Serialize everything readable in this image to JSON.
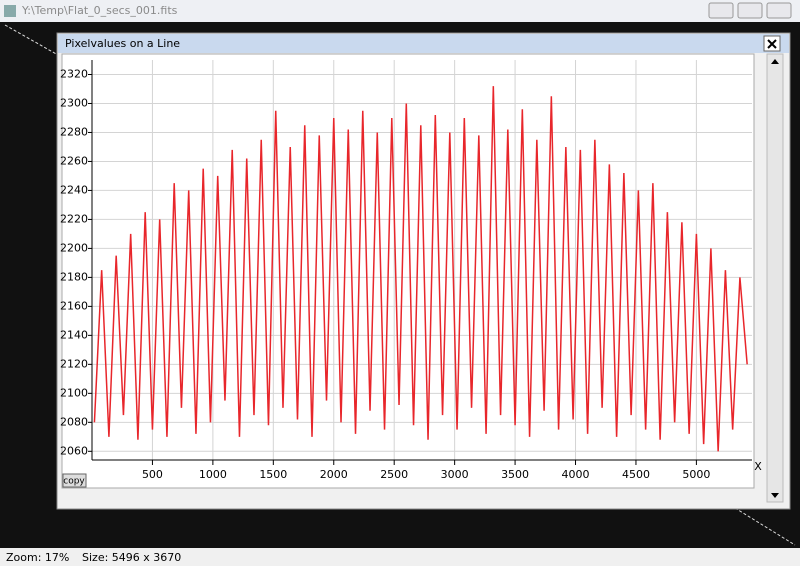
{
  "window": {
    "title": "Y:\\Temp\\Flat_0_secs_001.fits"
  },
  "dialog": {
    "title": "Pixelvalues on a Line",
    "copy_button": "copy"
  },
  "status": {
    "zoom": "Zoom: 17%",
    "size": "Size: 5496 x 3670"
  },
  "chart_data": {
    "type": "line",
    "x_label": "X",
    "grid": true,
    "color": "#e8262b",
    "xlim": [
      0,
      5460
    ],
    "ylim": [
      2054,
      2330
    ],
    "xticks": [
      500,
      1000,
      1500,
      2000,
      2500,
      3000,
      3500,
      4000,
      4500,
      5000
    ],
    "yticks": [
      2060,
      2080,
      2100,
      2120,
      2140,
      2160,
      2180,
      2200,
      2220,
      2240,
      2260,
      2280,
      2300,
      2320
    ],
    "x": [
      20,
      80,
      140,
      200,
      260,
      320,
      380,
      440,
      500,
      560,
      620,
      680,
      740,
      800,
      860,
      920,
      980,
      1040,
      1100,
      1160,
      1220,
      1280,
      1340,
      1400,
      1460,
      1520,
      1580,
      1640,
      1700,
      1760,
      1820,
      1880,
      1940,
      2000,
      2060,
      2120,
      2180,
      2240,
      2300,
      2360,
      2420,
      2480,
      2540,
      2600,
      2660,
      2720,
      2780,
      2840,
      2900,
      2960,
      3020,
      3080,
      3140,
      3200,
      3260,
      3320,
      3380,
      3440,
      3500,
      3560,
      3620,
      3680,
      3740,
      3800,
      3860,
      3920,
      3980,
      4040,
      4100,
      4160,
      4220,
      4280,
      4340,
      4400,
      4460,
      4520,
      4580,
      4640,
      4700,
      4760,
      4820,
      4880,
      4940,
      5000,
      5060,
      5120,
      5180,
      5240,
      5300,
      5360,
      5420
    ],
    "values": [
      2080,
      2185,
      2070,
      2195,
      2085,
      2210,
      2068,
      2225,
      2075,
      2220,
      2070,
      2245,
      2090,
      2240,
      2072,
      2255,
      2080,
      2250,
      2095,
      2268,
      2070,
      2262,
      2085,
      2275,
      2078,
      2295,
      2090,
      2270,
      2082,
      2285,
      2070,
      2278,
      2095,
      2290,
      2080,
      2282,
      2072,
      2295,
      2088,
      2280,
      2075,
      2290,
      2092,
      2300,
      2078,
      2285,
      2068,
      2292,
      2085,
      2280,
      2075,
      2290,
      2090,
      2278,
      2072,
      2312,
      2085,
      2282,
      2078,
      2296,
      2070,
      2275,
      2088,
      2305,
      2075,
      2270,
      2082,
      2268,
      2072,
      2275,
      2090,
      2258,
      2070,
      2252,
      2085,
      2240,
      2075,
      2245,
      2068,
      2225,
      2080,
      2218,
      2072,
      2210,
      2065,
      2200,
      2060,
      2185,
      2075,
      2180,
      2120
    ]
  }
}
